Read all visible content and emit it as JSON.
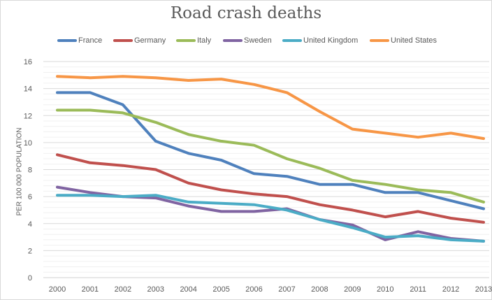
{
  "chart_data": {
    "type": "line",
    "title": "Road crash deaths",
    "xlabel": "",
    "ylabel": "PER 100 000 POPULATION",
    "x": [
      "2000",
      "2001",
      "2002",
      "2003",
      "2004",
      "2005",
      "2006",
      "2007",
      "2008",
      "2009",
      "2010",
      "2011",
      "2012",
      "2013"
    ],
    "ylim": [
      0,
      16
    ],
    "yticks": [
      "0",
      "2",
      "4",
      "6",
      "8",
      "10",
      "12",
      "14",
      "16"
    ],
    "grid": true,
    "legend_position": "top",
    "series": [
      {
        "name": "France",
        "color": "#4f81bd",
        "values": [
          13.7,
          13.7,
          12.8,
          10.1,
          9.2,
          8.7,
          7.7,
          7.5,
          6.9,
          6.9,
          6.3,
          6.3,
          5.7,
          5.1
        ]
      },
      {
        "name": "Germany",
        "color": "#c0504d",
        "values": [
          9.1,
          8.5,
          8.3,
          8.0,
          7.0,
          6.5,
          6.2,
          6.0,
          5.4,
          5.0,
          4.5,
          4.9,
          4.4,
          4.1
        ]
      },
      {
        "name": "Italy",
        "color": "#9bbb59",
        "values": [
          12.4,
          12.4,
          12.2,
          11.5,
          10.6,
          10.1,
          9.8,
          8.8,
          8.1,
          7.2,
          6.9,
          6.5,
          6.3,
          5.6
        ]
      },
      {
        "name": "Sweden",
        "color": "#8064a2",
        "values": [
          6.7,
          6.3,
          6.0,
          5.9,
          5.3,
          4.9,
          4.9,
          5.1,
          4.3,
          3.9,
          2.8,
          3.4,
          2.9,
          2.7
        ]
      },
      {
        "name": "United Kingdom",
        "color": "#4bacc6",
        "values": [
          6.1,
          6.1,
          6.0,
          6.1,
          5.6,
          5.5,
          5.4,
          5.0,
          4.3,
          3.7,
          3.0,
          3.1,
          2.8,
          2.7
        ]
      },
      {
        "name": "United States",
        "color": "#f79646",
        "values": [
          14.9,
          14.8,
          14.9,
          14.8,
          14.6,
          14.7,
          14.3,
          13.7,
          12.3,
          11.0,
          10.7,
          10.4,
          10.7,
          10.3
        ]
      }
    ]
  }
}
